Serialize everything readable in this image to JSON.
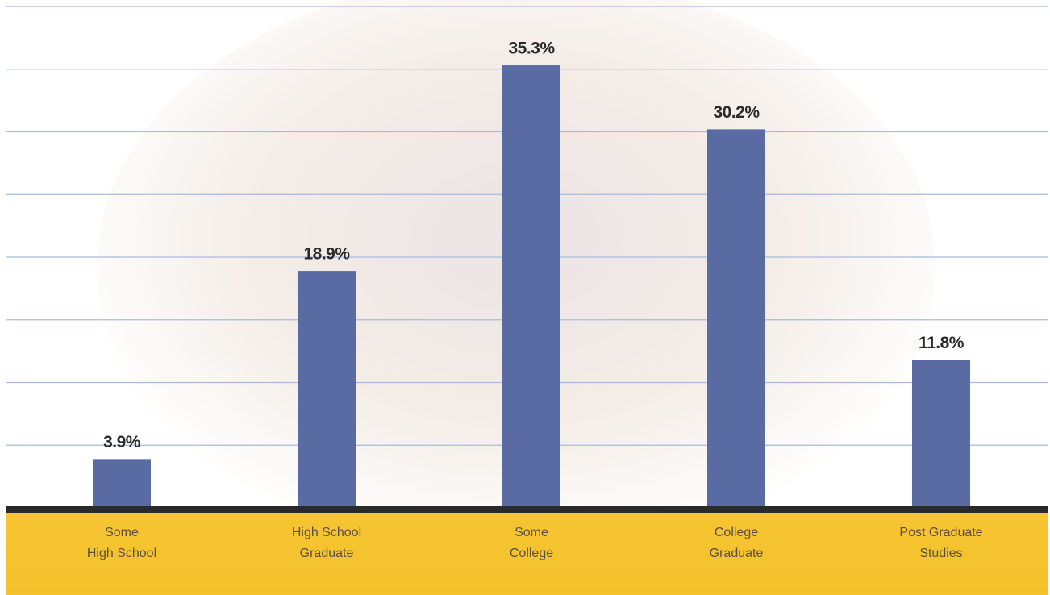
{
  "chart_data": {
    "type": "bar",
    "categories": [
      [
        "Some",
        "High School"
      ],
      [
        "High School",
        "Graduate"
      ],
      [
        "Some",
        "College"
      ],
      [
        "College",
        "Graduate"
      ],
      [
        "Post Graduate",
        "Studies"
      ]
    ],
    "values": [
      3.9,
      18.9,
      35.3,
      30.2,
      11.8
    ],
    "value_labels": [
      "3.9%",
      "18.9%",
      "35.3%",
      "30.2%",
      "11.8%"
    ],
    "color": "#5a6ba4",
    "ylim": [
      0,
      40
    ],
    "yticks": [
      0,
      5,
      10,
      15,
      20,
      25,
      30,
      35,
      40
    ],
    "grid": true
  }
}
